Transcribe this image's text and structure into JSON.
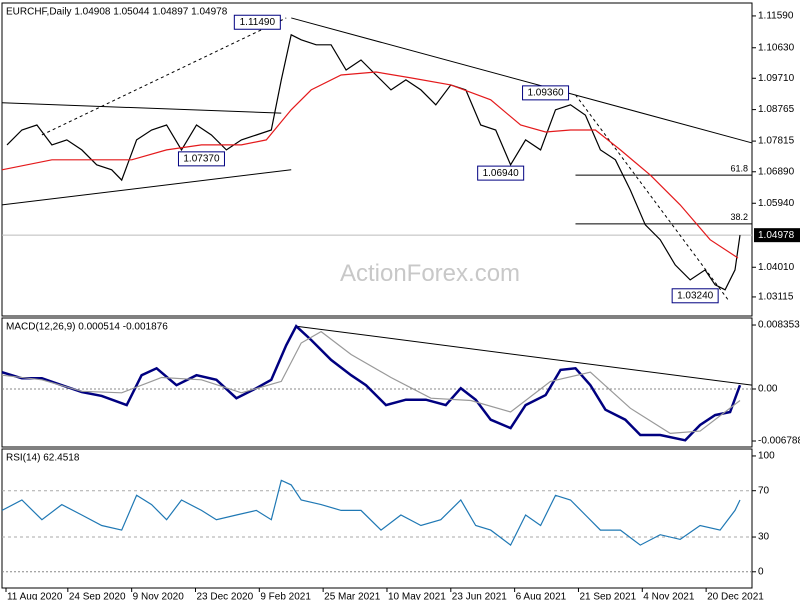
{
  "chart_data": [
    {
      "type": "line",
      "title": "EURCHF,Daily 1.04908 1.05044 1.04897 1.04978",
      "watermark": "ActionForex.com",
      "xlim": [
        0,
        376
      ],
      "ylim": [
        1.0254,
        1.1198
      ],
      "yticks": [
        {
          "value": 1.1159,
          "label": "1.11590"
        },
        {
          "value": 1.1063,
          "label": "1.10630"
        },
        {
          "value": 1.0971,
          "label": "1.09710"
        },
        1.08765,
        1.07815,
        {
          "value": 1.0689,
          "label": "1.06890"
        },
        {
          "value": 1.0594,
          "label": "1.05940"
        },
        {
          "value": 1.0401,
          "label": "1.04010"
        },
        1.03115
      ],
      "last_price": 1.04978,
      "series": [
        {
          "color": "#000000",
          "x": [
            2.5,
            10,
            17.5,
            25,
            32.5,
            40,
            47.5,
            55,
            60,
            67.5,
            75,
            82.5,
            90,
            97.5,
            105,
            112.5,
            120,
            127.5,
            135,
            140,
            145,
            150,
            157.5,
            165,
            172.5,
            180,
            187.5,
            195,
            202.5,
            210,
            217.5,
            225,
            232.5,
            240,
            247.5,
            255,
            262.5,
            270,
            277.5,
            285,
            292.5,
            300,
            307.5,
            315,
            322.5,
            330,
            337.5,
            345,
            352.5,
            357.5,
            362.5,
            367.5,
            370
          ],
          "values": [
            1.077,
            1.0815,
            1.083,
            1.077,
            1.0785,
            1.0755,
            1.071,
            1.0695,
            1.0664,
            1.0785,
            1.0815,
            1.083,
            1.0755,
            1.083,
            1.08,
            1.0755,
            1.0785,
            1.08,
            1.0815,
            1.0966,
            1.1102,
            1.1087,
            1.1072,
            1.1072,
            1.0996,
            1.1026,
            1.0981,
            1.0936,
            1.0966,
            1.0936,
            1.0891,
            1.0951,
            1.0936,
            1.083,
            1.0815,
            1.071,
            1.0785,
            1.0755,
            1.0876,
            1.0891,
            1.086,
            1.0755,
            1.0725,
            1.0634,
            1.0529,
            1.0484,
            1.0408,
            1.0363,
            1.0393,
            1.0348,
            1.0333,
            1.0393,
            1.0498
          ]
        },
        {
          "color": "#e41a1c",
          "x": [
            0,
            25,
            50,
            65,
            82.5,
            100,
            120,
            132.5,
            145,
            155,
            170,
            187.5,
            205,
            225,
            245,
            260,
            272.5,
            285,
            297.5,
            310,
            325,
            340,
            355,
            369
          ],
          "values": [
            1.0695,
            1.0725,
            1.0725,
            1.0725,
            1.0755,
            1.077,
            1.077,
            1.0785,
            1.0876,
            1.0936,
            1.0981,
            1.099,
            1.0972,
            1.0951,
            1.0906,
            1.083,
            1.0809,
            1.0815,
            1.0815,
            1.0755,
            1.0679,
            1.0589,
            1.0484,
            1.0429
          ]
        }
      ],
      "trendlines": [
        {
          "x": [
            145,
            376
          ],
          "y": [
            1.1153,
            1.0776
          ]
        },
        {
          "x": [
            20,
            142.5
          ],
          "y": [
            1.08,
            1.1153
          ],
          "dashed": true
        },
        {
          "x": [
            0,
            140
          ],
          "y": [
            1.0897,
            1.0866
          ]
        },
        {
          "x": [
            0,
            145
          ],
          "y": [
            1.0589,
            1.0695
          ]
        },
        {
          "x": [
            287.5,
            364
          ],
          "y": [
            1.0921,
            1.0303
          ],
          "dashed": true
        }
      ],
      "fib_levels": [
        {
          "label": "61.8",
          "value": 1.0679,
          "x": 287.5
        },
        {
          "label": "38.2",
          "value": 1.0532,
          "x": 287.5
        }
      ],
      "annotations": [
        {
          "text": "1.11490",
          "value": 1.1149,
          "x": 128
        },
        {
          "text": "1.07370",
          "value": 1.0737,
          "x": 100
        },
        {
          "text": "1.06940",
          "value": 1.0694,
          "x": 250
        },
        {
          "text": "1.09360",
          "value": 1.0936,
          "x": 272.5
        },
        {
          "text": "1.03240",
          "value": 1.0324,
          "x": 347.5
        }
      ]
    },
    {
      "type": "line",
      "title": "MACD(12,26,9) 0.000514 -0.001876",
      "xlim": [
        0,
        376
      ],
      "ylim": [
        -0.00757,
        0.00927
      ],
      "yticks": [
        0.008353,
        {
          "value": 0,
          "label": "0.00"
        },
        -0.006788
      ],
      "series": [
        {
          "color": "#000080",
          "width": 2.5,
          "x": [
            0,
            10,
            20,
            30,
            40,
            50,
            62.5,
            70,
            77.5,
            87.5,
            97.5,
            107.5,
            117.5,
            127.5,
            135,
            142.5,
            147.5,
            155,
            165,
            175,
            182.5,
            192.5,
            202.5,
            212.5,
            222.5,
            230,
            237.5,
            245,
            255,
            262.5,
            272.5,
            280,
            287.5,
            295,
            302.5,
            312.5,
            320,
            330,
            342.5,
            350,
            357.5,
            365,
            370
          ],
          "values": [
            0.0022,
            0.0014,
            0.0014,
            0.0005,
            -0.0004,
            -0.0009,
            -0.0021,
            0.0018,
            0.0027,
            0.0005,
            0.0018,
            0.0012,
            -0.0012,
            0.0001,
            0.0012,
            0.0057,
            0.0082,
            0.0064,
            0.0038,
            0.0018,
            0.0005,
            -0.0021,
            -0.0014,
            -0.0014,
            -0.0021,
            0.0001,
            -0.0014,
            -0.004,
            -0.0051,
            -0.0021,
            -0.0008,
            0.0025,
            0.0027,
            0.0005,
            -0.0027,
            -0.004,
            -0.006,
            -0.006,
            -0.0067,
            -0.0047,
            -0.0034,
            -0.003,
            0.0005
          ]
        },
        {
          "color": "#999999",
          "x": [
            0,
            20,
            40,
            60,
            80,
            100,
            120,
            140,
            150,
            160,
            175,
            195,
            215,
            235,
            255,
            275,
            295,
            315,
            335,
            350,
            370
          ],
          "values": [
            0.0018,
            0.0012,
            -0.0003,
            -0.0005,
            0.0015,
            0.0012,
            -0.0005,
            0.001,
            0.006,
            0.0075,
            0.0045,
            0.0015,
            -0.0012,
            -0.0015,
            -0.003,
            0.001,
            0.0022,
            -0.0025,
            -0.0058,
            -0.0055,
            -0.0015
          ]
        }
      ],
      "trendlines": [
        {
          "x": [
            147.5,
            376
          ],
          "y": [
            0.0082,
            0.0005
          ]
        }
      ]
    },
    {
      "type": "line",
      "title": "RSI(14) 62.4518",
      "xlim": [
        0,
        376
      ],
      "ylim": [
        -14,
        106
      ],
      "yticks": [
        100,
        70,
        30,
        0
      ],
      "dashed_levels": [
        70,
        30
      ],
      "series": [
        {
          "color": "#1f78b4",
          "x": [
            0,
            10,
            20,
            30,
            40,
            50,
            60,
            67.5,
            75,
            82.5,
            90,
            100,
            107.5,
            117.5,
            127.5,
            135,
            140,
            145,
            150,
            160,
            170,
            180,
            190,
            200,
            210,
            220,
            230,
            237.5,
            245,
            255,
            262.5,
            270,
            277.5,
            285,
            292.5,
            300,
            310,
            320,
            330,
            340,
            350,
            360,
            367.5,
            370
          ],
          "values": [
            53,
            62,
            45,
            58,
            49,
            40,
            36,
            66,
            58,
            45,
            62,
            53,
            45,
            49,
            53,
            45,
            79,
            75,
            62,
            58,
            53,
            53,
            36,
            49,
            40,
            45,
            62,
            40,
            36,
            23,
            49,
            40,
            66,
            62,
            49,
            36,
            36,
            23,
            32,
            28,
            40,
            36,
            53,
            62
          ]
        }
      ],
      "xticks": [
        {
          "value": 2,
          "label": "11 Aug 2020"
        },
        {
          "value": 33,
          "label": "24 Sep 2020"
        },
        {
          "value": 65,
          "label": "9 Nov 2020"
        },
        {
          "value": 97,
          "label": "23 Dec 2020"
        },
        {
          "value": 129,
          "label": "9 Feb 2021"
        },
        {
          "value": 161,
          "label": "25 Mar 2021"
        },
        {
          "value": 193,
          "label": "10 May 2021"
        },
        {
          "value": 225,
          "label": "23 Jun 2021"
        },
        {
          "value": 257,
          "label": "6 Aug 2021"
        },
        {
          "value": 289,
          "label": "21 Sep 2021"
        },
        {
          "value": 321,
          "label": "4 Nov 2021"
        },
        {
          "value": 353,
          "label": "20 Dec 2021"
        }
      ]
    }
  ]
}
